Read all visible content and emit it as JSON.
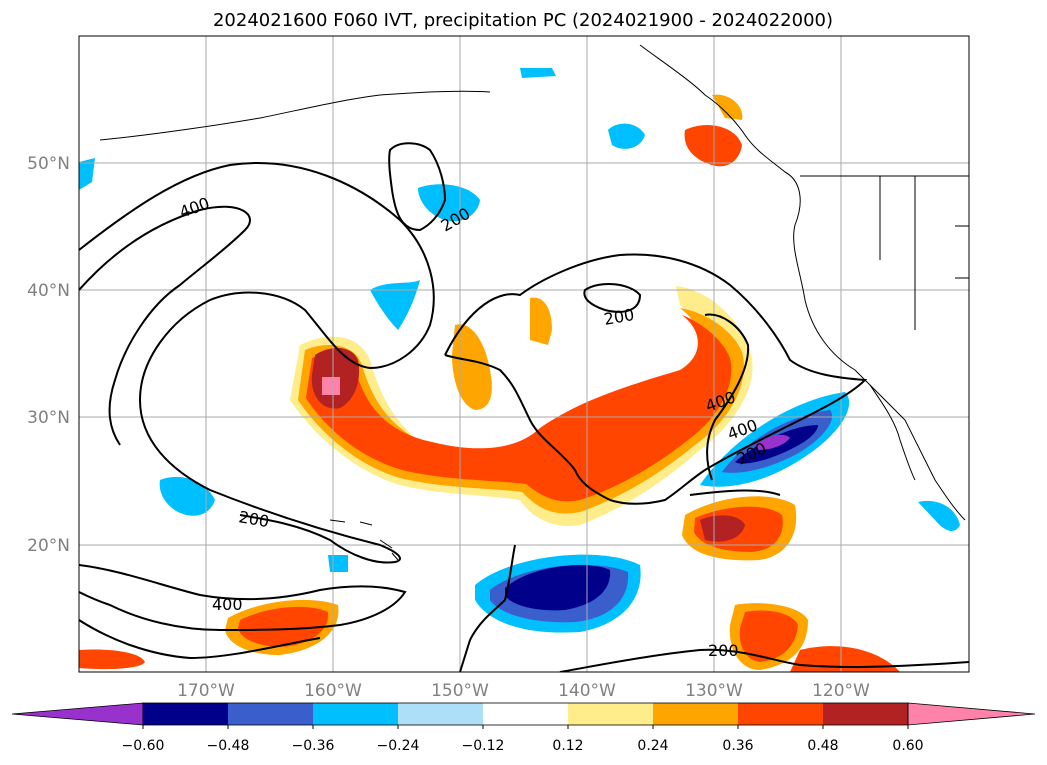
{
  "title": "2024021600 F060 IVT, precipitation PC (2024021900 - 2024022000)",
  "map": {
    "lat_labels": [
      "50°N",
      "40°N",
      "30°N",
      "20°N"
    ],
    "lon_labels": [
      "170°W",
      "160°W",
      "150°W",
      "140°W",
      "130°W",
      "120°W"
    ],
    "contour_labels": [
      "400",
      "200",
      "200",
      "400",
      "200",
      "400",
      "200",
      "400",
      "200"
    ]
  },
  "colorbar": {
    "ticks": [
      "−0.60",
      "−0.48",
      "−0.36",
      "−0.24",
      "−0.12",
      "0.12",
      "0.24",
      "0.36",
      "0.48",
      "0.60"
    ],
    "colors": [
      "#9932CC",
      "#00008B",
      "#3A5FCD",
      "#00BFFF",
      "#ADE0F8",
      "#FFFFFF",
      "#FFEC8B",
      "#FFA500",
      "#FF4500",
      "#B22222",
      "#FF82AB"
    ]
  },
  "colors": {
    "strong_negative": "#9932CC",
    "negative_3": "#00008B",
    "negative_2": "#3A5FCD",
    "negative_1": "#00BFFF",
    "weak_negative": "#ADE0F8",
    "weak_positive": "#FFEC8B",
    "positive_1": "#FFA500",
    "positive_2": "#FF4500",
    "positive_3": "#B22222",
    "strong_positive": "#FF82AB",
    "contour": "#000000",
    "grid": "#aaaaaa"
  }
}
